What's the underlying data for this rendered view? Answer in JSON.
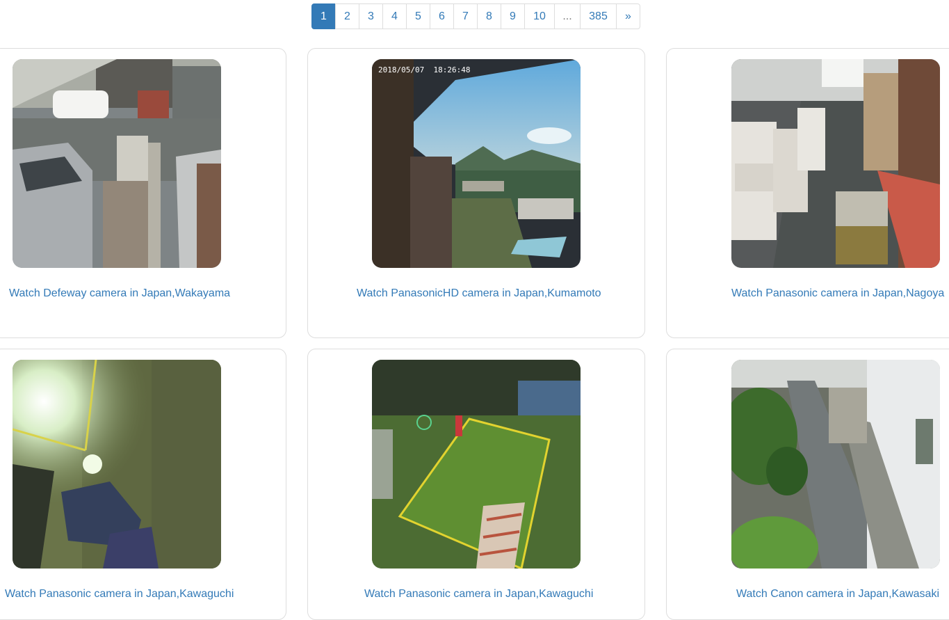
{
  "pagination": {
    "pages": [
      "1",
      "2",
      "3",
      "4",
      "5",
      "6",
      "7",
      "8",
      "9",
      "10"
    ],
    "active_page": "1",
    "ellipsis": "...",
    "last_page": "385",
    "next": "»"
  },
  "cameras": [
    {
      "link_text": "Watch Defeway camera in Japan,Wakayama",
      "scene": "residential-driveway",
      "timestamp_overlay": ""
    },
    {
      "link_text": "Watch PanasonicHD camera in Japan,Kumamoto",
      "scene": "hotel-rooftop-view",
      "timestamp_overlay": "2018/05/07  18:26:48"
    },
    {
      "link_text": "Watch Panasonic camera in Japan,Nagoya",
      "scene": "warehouse-aisle"
    },
    {
      "link_text": "Watch Panasonic camera in Japan,Kawaguchi",
      "scene": "night-concrete-wall"
    },
    {
      "link_text": "Watch Panasonic camera in Japan,Kawaguchi",
      "scene": "factory-floor"
    },
    {
      "link_text": "Watch Canon camera in Japan,Kawasaki",
      "scene": "alley-with-bushes"
    }
  ],
  "colors": {
    "link": "#337ab7",
    "active_page_bg": "#337ab7",
    "border": "#dddddd"
  }
}
